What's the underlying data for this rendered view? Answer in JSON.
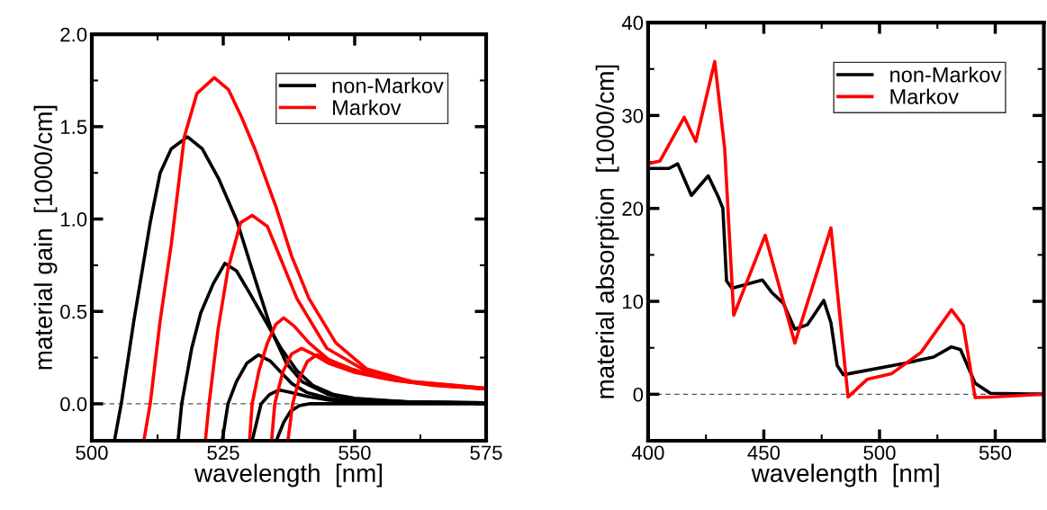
{
  "chart_data": [
    {
      "type": "line",
      "xlabel": "wavelength  [nm]",
      "ylabel": "material gain  [1000/cm]",
      "xlim": [
        500,
        575
      ],
      "ylim": [
        -0.2,
        2.0
      ],
      "xticks": [
        500,
        525,
        550,
        575
      ],
      "yticks": [
        {
          "value": 0,
          "label": "0.0"
        },
        {
          "value": 0.5,
          "label": "0.5"
        },
        {
          "value": 1,
          "label": "1.0"
        },
        {
          "value": 1.5,
          "label": "1.5"
        },
        {
          "value": 2,
          "label": "2.0"
        }
      ],
      "legend": "top right",
      "ref_lines": [
        {
          "axis": "y",
          "value": 0,
          "color": "#555555",
          "line_style": "dashed"
        }
      ],
      "series": [
        {
          "name": "non-Markov",
          "color": "#000000",
          "x": [
            504.3,
            505.6,
            508,
            511.1,
            513,
            515.1,
            518.2,
            521,
            524.1,
            527.6,
            531,
            534.4,
            537,
            540,
            545,
            550,
            560,
            575
          ],
          "values": [
            -0.2,
            0,
            0.45,
            0.98,
            1.25,
            1.38,
            1.445,
            1.38,
            1.22,
            0.99,
            0.68,
            0.38,
            0.22,
            0.12,
            0.05,
            0.025,
            0.01,
            0.005
          ]
        },
        {
          "color": "#000000",
          "x": [
            516.4,
            517.1,
            519,
            520.7,
            523.1,
            525.3,
            527.5,
            530,
            533,
            536,
            539,
            542,
            546,
            550,
            560,
            575
          ],
          "values": [
            -0.2,
            0,
            0.3,
            0.49,
            0.65,
            0.76,
            0.72,
            0.6,
            0.45,
            0.3,
            0.18,
            0.1,
            0.05,
            0.03,
            0.01,
            0.005
          ]
        },
        {
          "color": "#000000",
          "x": [
            524.8,
            525.9,
            527.5,
            529.5,
            531.7,
            534,
            536,
            538,
            541,
            545,
            550,
            575
          ],
          "values": [
            -0.2,
            0,
            0.12,
            0.22,
            0.265,
            0.23,
            0.17,
            0.11,
            0.06,
            0.03,
            0.015,
            0.005
          ]
        },
        {
          "color": "#000000",
          "x": [
            530.5,
            532.2,
            533.8,
            535.6,
            538,
            541,
            545,
            550,
            575
          ],
          "values": [
            -0.2,
            0,
            0.05,
            0.075,
            0.06,
            0.04,
            0.02,
            0.01,
            0.003
          ]
        },
        {
          "color": "#000000",
          "x": [
            535.1,
            536.5,
            537.8,
            539.5,
            541.3,
            575
          ],
          "values": [
            -0.2,
            -0.1,
            -0.04,
            -0.01,
            0,
            0
          ]
        },
        {
          "name": "Markov",
          "color": "#ff0000",
          "x": [
            509.9,
            511.1,
            513,
            515.1,
            517.6,
            520,
            523.3,
            526,
            528.5,
            531,
            535.1,
            538,
            541.3,
            546.4,
            552.2,
            560.8,
            575
          ],
          "values": [
            -0.2,
            0,
            0.45,
            0.86,
            1.445,
            1.68,
            1.765,
            1.7,
            1.55,
            1.38,
            1.06,
            0.8,
            0.57,
            0.33,
            0.19,
            0.12,
            0.085
          ]
        },
        {
          "color": "#ff0000",
          "x": [
            521.6,
            522.3,
            524,
            525.9,
            528.3,
            530.5,
            533.4,
            536,
            539,
            544.7,
            552,
            561,
            575
          ],
          "values": [
            -0.2,
            0,
            0.4,
            0.73,
            0.98,
            1.02,
            0.96,
            0.78,
            0.57,
            0.3,
            0.18,
            0.12,
            0.083
          ]
        },
        {
          "color": "#ff0000",
          "x": [
            530,
            530.5,
            531.8,
            533.4,
            535,
            536.5,
            538.5,
            541.3,
            545,
            549.3,
            555,
            563,
            575
          ],
          "values": [
            -0.2,
            0,
            0.18,
            0.33,
            0.43,
            0.465,
            0.42,
            0.33,
            0.24,
            0.19,
            0.14,
            0.11,
            0.08
          ]
        },
        {
          "color": "#ff0000",
          "x": [
            534.2,
            534.8,
            536.3,
            538,
            539.9,
            542,
            545,
            550,
            557,
            565,
            575
          ],
          "values": [
            -0.2,
            0,
            0.17,
            0.27,
            0.3,
            0.27,
            0.22,
            0.17,
            0.13,
            0.1,
            0.08
          ]
        },
        {
          "color": "#ff0000",
          "x": [
            537.3,
            538.2,
            539.5,
            541,
            542.8,
            545,
            548,
            552,
            558,
            566,
            575
          ],
          "values": [
            -0.2,
            0,
            0.14,
            0.23,
            0.265,
            0.24,
            0.2,
            0.16,
            0.125,
            0.1,
            0.08
          ]
        }
      ]
    },
    {
      "type": "line",
      "xlabel": "wavelength  [nm]",
      "ylabel": "material absorption  [1000/cm]",
      "xlim": [
        400,
        571
      ],
      "ylim": [
        -5,
        40
      ],
      "xticks": [
        400,
        450,
        500,
        550
      ],
      "yticks": [
        0,
        10,
        20,
        30,
        40
      ],
      "legend": "top right",
      "ref_lines": [
        {
          "axis": "y",
          "value": 0,
          "color": "#555555",
          "line_style": "dashed"
        }
      ],
      "series": [
        {
          "name": "non-Markov",
          "color": "#000000",
          "x": [
            400,
            409,
            412.8,
            418.7,
            426,
            430.4,
            432.3,
            433.9,
            436.2,
            449.4,
            453.3,
            458.4,
            463.4,
            468.9,
            475.9,
            479,
            481.7,
            484.4,
            510.1,
            523.3,
            531.1,
            535,
            541.3,
            547.9,
            571
          ],
          "values": [
            24.3,
            24.3,
            24.8,
            21.4,
            23.5,
            21.2,
            20,
            12.2,
            11.4,
            12.3,
            11.0,
            9.8,
            7.0,
            7.5,
            10.1,
            7.7,
            3.1,
            2.1,
            3.3,
            4.0,
            5.1,
            4.8,
            1.2,
            0.1,
            0
          ]
        },
        {
          "name": "Markov",
          "color": "#ff0000",
          "x": [
            400,
            405.1,
            415.6,
            420.6,
            428.8,
            433.1,
            437,
            450.6,
            463.4,
            479,
            486.4,
            494.6,
            505.1,
            517.9,
            531.1,
            536.2,
            541.3,
            547.9,
            571
          ],
          "values": [
            24.8,
            25.1,
            29.8,
            27.2,
            35.8,
            26.4,
            8.5,
            17.1,
            5.5,
            17.9,
            -0.3,
            1.6,
            2.2,
            4.5,
            9.1,
            7.4,
            -0.35,
            -0.3,
            0
          ]
        }
      ]
    }
  ]
}
